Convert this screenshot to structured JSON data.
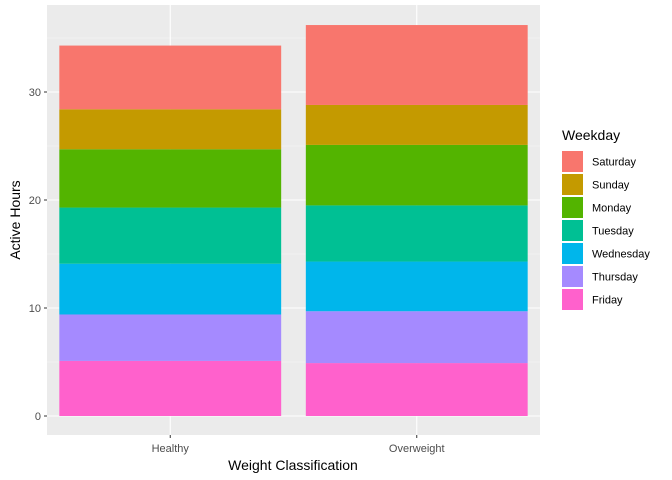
{
  "chart_data": {
    "type": "bar",
    "stacked": true,
    "categories": [
      "Healthy",
      "Overweight"
    ],
    "xlabel": "Weight Classification",
    "ylabel": "Active Hours",
    "ylim": [
      0,
      36.3
    ],
    "yticks": [
      0,
      10,
      20,
      30
    ],
    "grid": true,
    "legend": {
      "title": "Weekday",
      "placement": "right"
    },
    "series": [
      {
        "name": "Friday",
        "color": "#FF61CC",
        "values": [
          5.1,
          4.9
        ]
      },
      {
        "name": "Thursday",
        "color": "#A58AFF",
        "values": [
          4.3,
          4.8
        ]
      },
      {
        "name": "Wednesday",
        "color": "#00B6EB",
        "values": [
          4.7,
          4.6
        ]
      },
      {
        "name": "Tuesday",
        "color": "#00C094",
        "values": [
          5.2,
          5.2
        ]
      },
      {
        "name": "Monday",
        "color": "#53B400",
        "values": [
          5.4,
          5.6
        ]
      },
      {
        "name": "Sunday",
        "color": "#C49A00",
        "values": [
          3.7,
          3.7
        ]
      },
      {
        "name": "Saturday",
        "color": "#F8766D",
        "values": [
          5.9,
          7.4
        ]
      }
    ]
  },
  "theme": {
    "panel_bg": "#EBEBEB",
    "grid_major": "#FFFFFF"
  }
}
